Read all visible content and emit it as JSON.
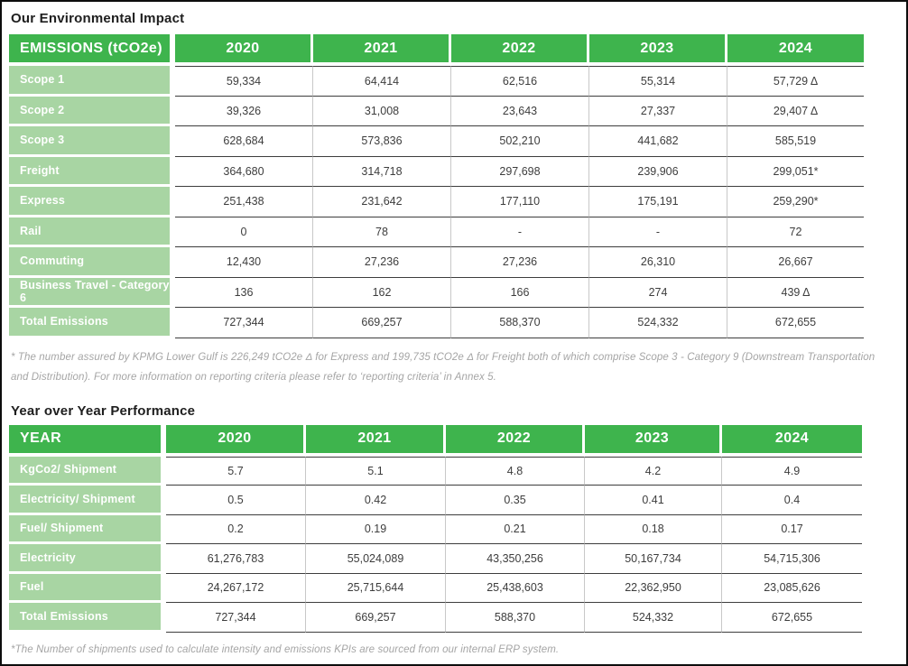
{
  "colors": {
    "header_green": "#3eb44d",
    "label_green": "#a8d5a3"
  },
  "sections": {
    "impact_title": "Our Environmental Impact",
    "yoy_title": "Year over Year Performance"
  },
  "footnotes": {
    "assurance_line1": "* The number assured by KPMG Lower Gulf is 226,249 tCO2e Δ for Express and 199,735 tCO2e Δ for Freight both of which comprise Scope 3 - Category 9 (Downstream Transportation",
    "assurance_line2": "and Distribution). For more information on reporting criteria please refer to ‘reporting criteria’ in Annex 5.",
    "shipments": "*The Number of shipments used to calculate intensity and emissions KPIs are sourced from our internal ERP system."
  },
  "emissions_table": {
    "header": [
      "EMISSIONS (tCO2e)",
      "2020",
      "2021",
      "2022",
      "2023",
      "2024"
    ],
    "rows": [
      {
        "label": "Scope 1",
        "values": [
          "59,334",
          "64,414",
          "62,516",
          "55,314",
          "57,729 Δ"
        ]
      },
      {
        "label": "Scope 2",
        "values": [
          "39,326",
          "31,008",
          "23,643",
          "27,337",
          "29,407 Δ"
        ]
      },
      {
        "label": "Scope 3",
        "values": [
          "628,684",
          "573,836",
          "502,210",
          "441,682",
          "585,519"
        ]
      },
      {
        "label": "Freight",
        "values": [
          "364,680",
          "314,718",
          "297,698",
          "239,906",
          "299,051*"
        ]
      },
      {
        "label": "Express",
        "values": [
          "251,438",
          "231,642",
          "177,110",
          "175,191",
          "259,290*"
        ]
      },
      {
        "label": "Rail",
        "values": [
          "0",
          "78",
          "-",
          "-",
          "72"
        ]
      },
      {
        "label": "Commuting",
        "values": [
          "12,430",
          "27,236",
          "27,236",
          "26,310",
          "26,667"
        ]
      },
      {
        "label": "Business Travel - Category 6",
        "values": [
          "136",
          "162",
          "166",
          "274",
          "439 Δ"
        ]
      },
      {
        "label": "Total Emissions",
        "values": [
          "727,344",
          "669,257",
          "588,370",
          "524,332",
          "672,655"
        ]
      }
    ]
  },
  "yoy_table": {
    "header": [
      "YEAR",
      "2020",
      "2021",
      "2022",
      "2023",
      "2024"
    ],
    "rows": [
      {
        "label": "KgCo2/ Shipment",
        "values": [
          "5.7",
          "5.1",
          "4.8",
          "4.2",
          "4.9"
        ]
      },
      {
        "label": "Electricity/ Shipment",
        "values": [
          "0.5",
          "0.42",
          "0.35",
          "0.41",
          "0.4"
        ]
      },
      {
        "label": "Fuel/ Shipment",
        "values": [
          "0.2",
          "0.19",
          "0.21",
          "0.18",
          "0.17"
        ]
      },
      {
        "label": "Electricity",
        "values": [
          "61,276,783",
          "55,024,089",
          "43,350,256",
          "50,167,734",
          "54,715,306"
        ]
      },
      {
        "label": "Fuel",
        "values": [
          "24,267,172",
          "25,715,644",
          "25,438,603",
          "22,362,950",
          "23,085,626"
        ]
      },
      {
        "label": "Total Emissions",
        "values": [
          "727,344",
          "669,257",
          "588,370",
          "524,332",
          "672,655"
        ]
      }
    ]
  }
}
